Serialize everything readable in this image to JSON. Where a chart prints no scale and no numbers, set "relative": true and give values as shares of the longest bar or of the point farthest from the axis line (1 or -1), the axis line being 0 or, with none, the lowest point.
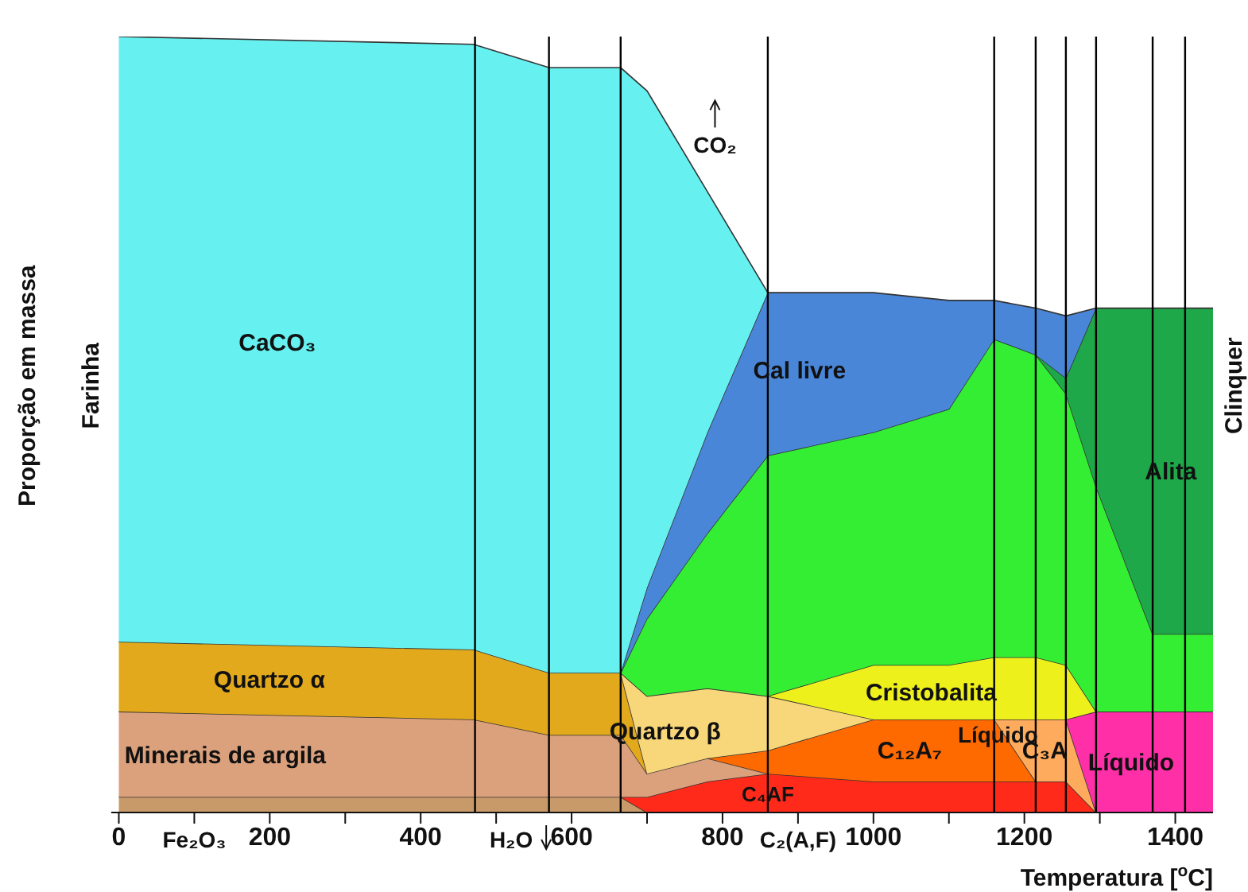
{
  "chart_data": {
    "type": "area",
    "relative": true,
    "stacked": true,
    "xlabel": "Temperatura [$^{o}$C]",
    "ylabel": "Proporção em massa",
    "x": [
      0,
      470,
      570,
      665,
      700,
      780,
      860,
      1000,
      1100,
      1160,
      1215,
      1255,
      1295,
      1370,
      1450
    ],
    "series": [
      {
        "name": "Fe₂O₃",
        "color": "#c89a6a",
        "values": [
          0.02,
          0.02,
          0.02,
          0.02,
          0,
          null,
          null,
          null,
          null,
          null,
          null,
          null,
          null,
          null,
          null
        ]
      },
      {
        "name": "C₄AF",
        "color": "#ff2a1a",
        "values": [
          null,
          null,
          null,
          0,
          0.02,
          0.04,
          0.05,
          0.04,
          0.04,
          0.04,
          0.04,
          0.04,
          0,
          null,
          null
        ]
      },
      {
        "name": "Minerais de argila",
        "color": "#dba07c",
        "values": [
          0.11,
          0.1,
          0.08,
          0.08,
          0.03,
          0.03,
          0,
          null,
          null,
          null,
          null,
          null,
          null,
          null,
          null
        ]
      },
      {
        "name": "C₁₂A₇",
        "color": "#ff6a00",
        "values": [
          null,
          null,
          null,
          null,
          null,
          0,
          0.03,
          0.08,
          0.08,
          0.08,
          0,
          null,
          null,
          null,
          null
        ]
      },
      {
        "name": "C₃A",
        "color": "#ffab5e",
        "values": [
          null,
          null,
          null,
          null,
          null,
          null,
          null,
          null,
          null,
          0,
          0.08,
          0.08,
          0,
          null,
          null
        ]
      },
      {
        "name": "Líquido",
        "color": "#ff2fa8",
        "values": [
          null,
          null,
          null,
          null,
          null,
          null,
          null,
          null,
          null,
          null,
          null,
          0,
          0.13,
          0.13,
          0.13
        ]
      },
      {
        "name": "Quartzo α",
        "color": "#e2a91c",
        "values": [
          0.09,
          0.09,
          0.08,
          0.08,
          0,
          null,
          null,
          null,
          null,
          null,
          null,
          null,
          null,
          null,
          null
        ]
      },
      {
        "name": "Quartzo β",
        "color": "#f8d77a",
        "values": [
          null,
          null,
          null,
          0,
          0.1,
          0.09,
          0.07,
          0,
          null,
          null,
          null,
          null,
          null,
          null,
          null
        ]
      },
      {
        "name": "Cristobalita",
        "color": "#eef01c",
        "values": [
          null,
          null,
          null,
          null,
          null,
          null,
          0,
          0.07,
          0.07,
          0.08,
          0.08,
          0.07,
          0,
          null,
          null
        ]
      },
      {
        "color": "#33ee33",
        "values": [
          null,
          null,
          null,
          0,
          0.1,
          0.2,
          0.31,
          0.3,
          0.33,
          0.41,
          0.39,
          0.35,
          0.29,
          0.1,
          0.1
        ]
      },
      {
        "name": "Alita",
        "color": "#1fa84a",
        "values": [
          null,
          null,
          null,
          null,
          null,
          null,
          null,
          null,
          null,
          null,
          0,
          0.02,
          0.23,
          0.42,
          0.42
        ]
      },
      {
        "name": "Cal livre",
        "color": "#4a86d8",
        "values": [
          null,
          null,
          null,
          0,
          0.04,
          0.13,
          0.21,
          0.18,
          0.14,
          0.05,
          0.06,
          0.08,
          0,
          null,
          null
        ]
      },
      {
        "name": "CaCO₃",
        "color": "#66f0f0",
        "values": [
          0.78,
          0.78,
          0.78,
          0.78,
          0.64,
          0.31,
          0,
          null,
          null,
          null,
          null,
          null,
          null,
          null,
          null
        ]
      }
    ],
    "xlim": [
      -10,
      1450
    ],
    "xticks": [
      0,
      {
        "value": 100,
        "label": null
      },
      200,
      {
        "value": 300,
        "label": null
      },
      400,
      {
        "value": 500,
        "label": null
      },
      600,
      {
        "value": 700,
        "label": null
      },
      800,
      {
        "value": 900,
        "label": null
      },
      1000,
      {
        "value": 1100,
        "label": null
      },
      1200,
      {
        "value": 1300,
        "label": null
      },
      1400
    ],
    "ref_lines": [
      {
        "axis": "x",
        "value": 472,
        "color": "#000000"
      },
      {
        "axis": "x",
        "value": 570,
        "color": "#000000"
      },
      {
        "axis": "x",
        "value": 665,
        "color": "#000000"
      },
      {
        "axis": "x",
        "value": 860,
        "color": "#000000"
      },
      {
        "axis": "x",
        "value": 1160,
        "color": "#000000"
      },
      {
        "axis": "x",
        "value": 1215,
        "color": "#000000"
      },
      {
        "axis": "x",
        "value": 1255,
        "color": "#000000"
      },
      {
        "axis": "x",
        "value": 1295,
        "color": "#000000"
      },
      {
        "axis": "x",
        "value": 1370,
        "color": "#000000"
      },
      {
        "axis": "x",
        "value": 1413,
        "color": "#000000"
      }
    ],
    "annotations": [
      "Farinha",
      "Clinquer",
      "C₂(A,F)",
      "Líquido",
      "H₂O",
      "CO₂"
    ],
    "legend": false,
    "grid": false
  }
}
